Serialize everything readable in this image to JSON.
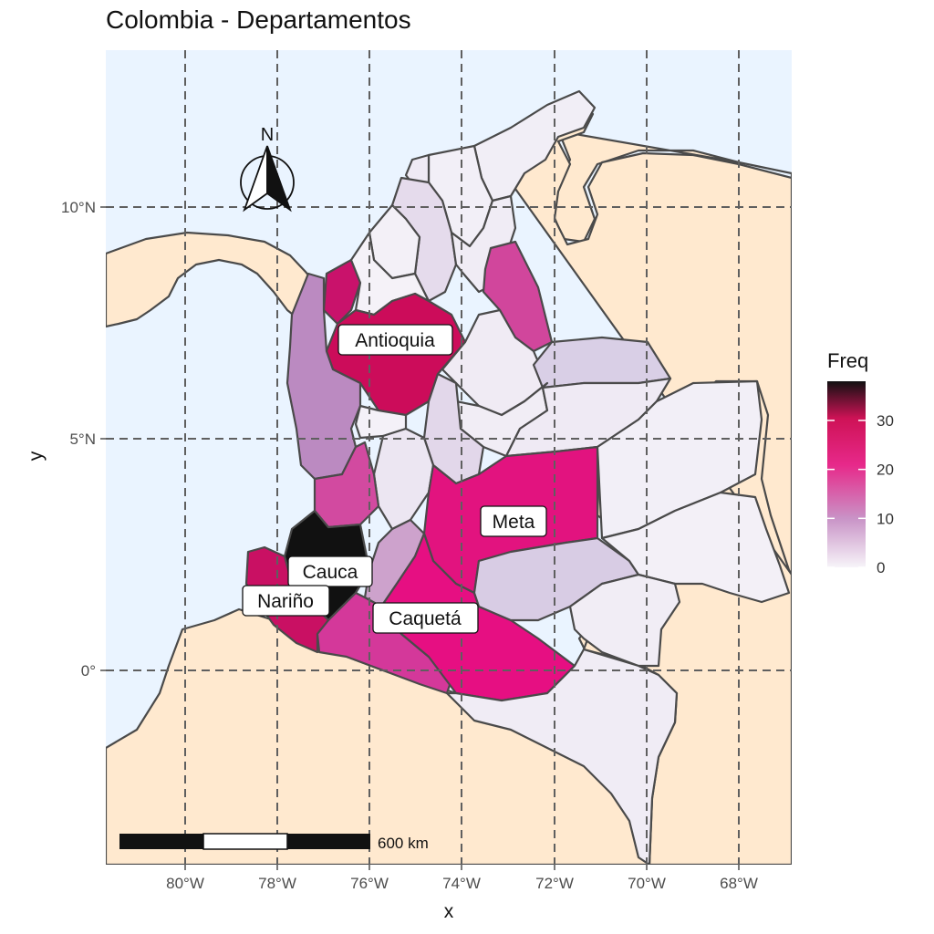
{
  "title": "Colombia - Departamentos",
  "axes": {
    "x_title": "x",
    "y_title": "y",
    "x_ticks": [
      "80°W",
      "78°W",
      "76°W",
      "74°W",
      "72°W",
      "70°W",
      "68°W"
    ],
    "y_ticks": [
      "10°N",
      "5°N",
      "0°"
    ]
  },
  "labels": {
    "antioquia": "Antioquia",
    "meta": "Meta",
    "cauca": "Cauca",
    "narino": "Nariño",
    "caqueta": "Caquetá"
  },
  "north_arrow": {
    "letter": "N"
  },
  "scale_bar": {
    "label": "600 km"
  },
  "legend": {
    "title": "Freq",
    "ticks": [
      "30",
      "20",
      "10",
      "0"
    ],
    "tick_values": [
      30,
      20,
      10,
      0
    ],
    "range": [
      0,
      38
    ],
    "colors": [
      "#f7f4f9",
      "#c994c7",
      "#e7298a",
      "#ce1256",
      "#111111"
    ]
  },
  "colors": {
    "ocean": "#eaf4ff",
    "land": "#ffe9cf",
    "border": "#4a4a4a"
  }
}
